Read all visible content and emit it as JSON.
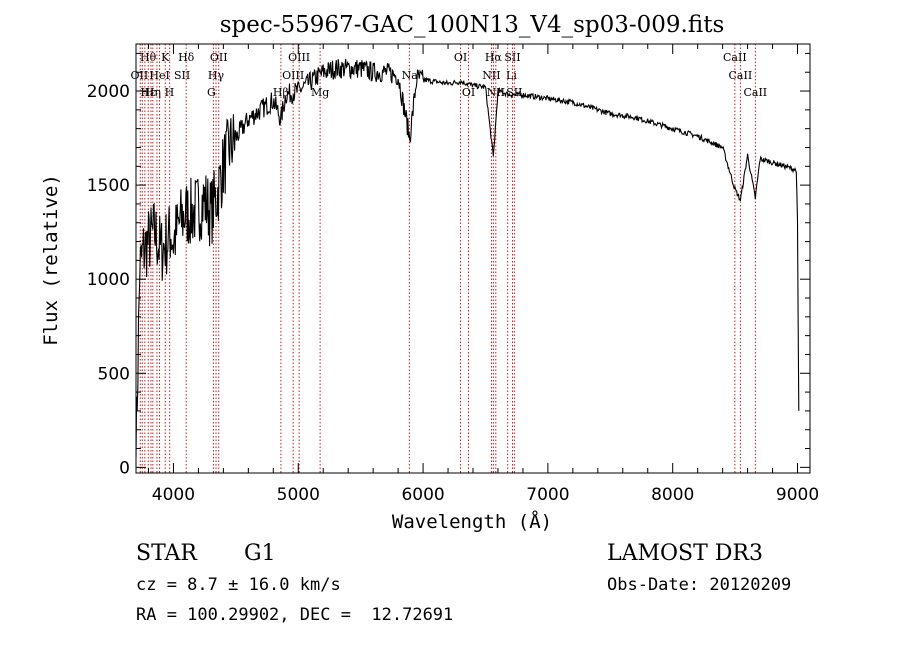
{
  "chart_data": {
    "type": "line",
    "title": "spec-55967-GAC_100N13_V4_sp03-009.fits",
    "xlabel": "Wavelength (Å)",
    "ylabel": "Flux (relative)",
    "xlim": [
      3700,
      9100
    ],
    "ylim": [
      -30,
      2250
    ],
    "xticks": [
      4000,
      5000,
      6000,
      7000,
      8000,
      9000
    ],
    "yticks": [
      0,
      500,
      1000,
      1500,
      2000
    ],
    "grid": false,
    "series": [
      {
        "name": "flux",
        "color": "#000000",
        "x": [
          3700,
          3730,
          3760,
          3800,
          3850,
          3900,
          3950,
          3980,
          4000,
          4050,
          4100,
          4150,
          4200,
          4250,
          4300,
          4350,
          4400,
          4450,
          4500,
          4600,
          4700,
          4800,
          4861,
          4900,
          5000,
          5100,
          5200,
          5300,
          5400,
          5500,
          5600,
          5700,
          5800,
          5893,
          5950,
          6000,
          6100,
          6200,
          6300,
          6400,
          6500,
          6563,
          6600,
          6700,
          6800,
          6900,
          7000,
          7100,
          7200,
          7300,
          7400,
          7500,
          7600,
          7700,
          7800,
          7900,
          8000,
          8100,
          8200,
          8300,
          8400,
          8498,
          8542,
          8600,
          8662,
          8700,
          8800,
          8900,
          8990,
          9000,
          9010
        ],
        "y": [
          50,
          1050,
          1150,
          1200,
          1250,
          1150,
          1200,
          1250,
          1200,
          1300,
          1350,
          1350,
          1380,
          1420,
          1350,
          1450,
          1600,
          1700,
          1750,
          1850,
          1900,
          1950,
          1850,
          1980,
          2000,
          2050,
          2100,
          2120,
          2120,
          2120,
          2100,
          2100,
          2080,
          1750,
          2070,
          2060,
          2050,
          2040,
          2050,
          2030,
          2020,
          1650,
          2000,
          1980,
          1980,
          1970,
          1960,
          1950,
          1940,
          1920,
          1900,
          1880,
          1870,
          1860,
          1840,
          1820,
          1800,
          1780,
          1760,
          1730,
          1700,
          1480,
          1420,
          1660,
          1430,
          1640,
          1620,
          1600,
          1580,
          1300,
          300
        ]
      }
    ],
    "lines": {
      "wavelengths": [
        3734,
        3750,
        3771,
        3798,
        3820,
        3835,
        3868,
        3889,
        3934,
        3970,
        4102,
        4320,
        4341,
        4363,
        4861,
        4959,
        5007,
        5175,
        5890,
        6300,
        6364,
        6548,
        6563,
        6583,
        6678,
        6716,
        6731,
        8498,
        8542,
        8662
      ],
      "color": "#cc0000"
    },
    "line_labels": [
      {
        "text": "Hθ",
        "x": 3797,
        "row": 1
      },
      {
        "text": "K",
        "x": 3934,
        "row": 1
      },
      {
        "text": "Hδ",
        "x": 4102,
        "row": 1
      },
      {
        "text": "OII",
        "x": 4363,
        "row": 1
      },
      {
        "text": "OIII",
        "x": 5007,
        "row": 1
      },
      {
        "text": "OI",
        "x": 6300,
        "row": 1
      },
      {
        "text": "Hα",
        "x": 6563,
        "row": 1
      },
      {
        "text": "SII",
        "x": 6716,
        "row": 1
      },
      {
        "text": "CaII",
        "x": 8498,
        "row": 1
      },
      {
        "text": "OII",
        "x": 3727,
        "row": 2
      },
      {
        "text": "HeI",
        "x": 3889,
        "row": 2
      },
      {
        "text": "SII",
        "x": 4069,
        "row": 2
      },
      {
        "text": "Hγ",
        "x": 4341,
        "row": 2
      },
      {
        "text": "OIII",
        "x": 4959,
        "row": 2
      },
      {
        "text": "Na",
        "x": 5893,
        "row": 2
      },
      {
        "text": "NII",
        "x": 6548,
        "row": 2
      },
      {
        "text": "Li",
        "x": 6708,
        "row": 2
      },
      {
        "text": "CaII",
        "x": 8542,
        "row": 2
      },
      {
        "text": "Hε",
        "x": 3797,
        "row": 3
      },
      {
        "text": "Hη",
        "x": 3835,
        "row": 3
      },
      {
        "text": "H",
        "x": 3968,
        "row": 3
      },
      {
        "text": "G",
        "x": 4304,
        "row": 3
      },
      {
        "text": "Hβ",
        "x": 4861,
        "row": 3
      },
      {
        "text": "Mg",
        "x": 5175,
        "row": 3
      },
      {
        "text": "OI",
        "x": 6364,
        "row": 3
      },
      {
        "text": "NII",
        "x": 6583,
        "row": 3
      },
      {
        "text": "SII",
        "x": 6731,
        "row": 3
      },
      {
        "text": "CaII",
        "x": 8662,
        "row": 3
      }
    ]
  },
  "info": {
    "object_class": "STAR",
    "subclass": "G1",
    "survey": "LAMOST DR3",
    "cz": "cz = 8.7 ± 16.0 km/s",
    "obs_date": "Obs-Date: 20120209",
    "coords": "RA = 100.29902, DEC =  12.72691"
  }
}
